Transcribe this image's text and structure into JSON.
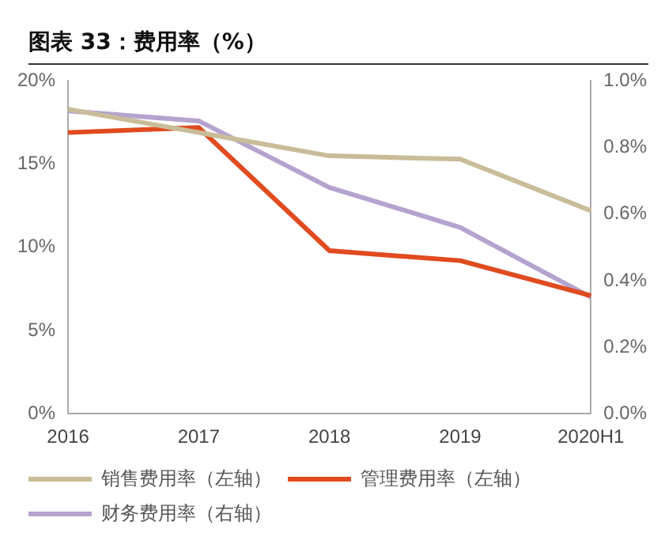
{
  "chart_data": {
    "type": "line",
    "title": "图表 33：费用率（%）",
    "categories": [
      "2016",
      "2017",
      "2018",
      "2019",
      "2020H1"
    ],
    "series": [
      {
        "name": "销售费用率（左轴）",
        "color": "#c8bd98",
        "values": [
          18.3,
          16.9,
          15.5,
          15.3,
          12.2
        ]
      },
      {
        "name": "管理费用率（左轴）",
        "color": "#e04b1f",
        "values": [
          16.9,
          17.2,
          9.8,
          9.2,
          7.1
        ]
      },
      {
        "name": "财务费用率（右轴）",
        "color": "#b5a3cf",
        "values": [
          0.91,
          0.88,
          0.68,
          0.56,
          0.35
        ],
        "axis": "y2"
      }
    ],
    "ylim": [
      0,
      20
    ],
    "yticks": [
      {
        "value": 0,
        "label": "0%"
      },
      {
        "value": 5,
        "label": "5%"
      },
      {
        "value": 10,
        "label": "10%"
      },
      {
        "value": 15,
        "label": "15%"
      },
      {
        "value": 20,
        "label": "20%"
      }
    ],
    "y2lim": [
      0,
      1
    ],
    "y2ticks": [
      {
        "value": 0,
        "label": "0.0%"
      },
      {
        "value": 0.2,
        "label": "0.2%"
      },
      {
        "value": 0.4,
        "label": "0.4%"
      },
      {
        "value": 0.6,
        "label": "0.6%"
      },
      {
        "value": 0.8,
        "label": "0.8%"
      },
      {
        "value": 1,
        "label": "1.0%"
      }
    ],
    "grid": false,
    "legend": "bottom",
    "marker": "none",
    "line_style": "solid"
  }
}
